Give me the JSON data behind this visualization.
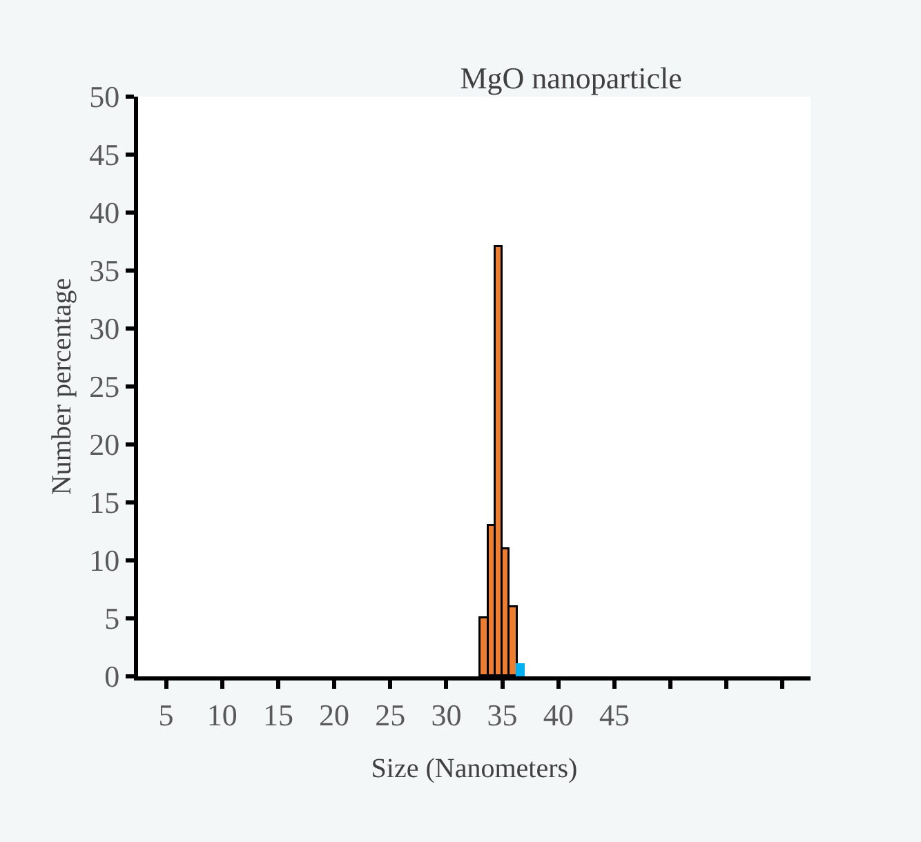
{
  "chart_data": {
    "type": "histogram",
    "title": "MgO nanoparticle",
    "xlabel": "Size (Nanometers)",
    "ylabel": "Number percentage",
    "bins": [
      33.1,
      33.75,
      34.4,
      35.05,
      35.7,
      36.35,
      37.0
    ],
    "values": [
      5,
      13,
      37,
      11,
      6,
      1
    ],
    "colors": [
      "#ed7d31",
      "#ed7d31",
      "#ed7d31",
      "#ed7d31",
      "#ed7d31",
      "#00b0f0"
    ],
    "xlim": [
      2.5,
      62.5
    ],
    "xticks": [
      5,
      10,
      15,
      20,
      25,
      30,
      35,
      40,
      45,
      {
        "value": 50,
        "label": null
      },
      {
        "value": 55,
        "label": null
      },
      {
        "value": 60,
        "label": null
      }
    ],
    "ylim": [
      0,
      50
    ],
    "yticks": [
      0,
      5,
      10,
      15,
      20,
      25,
      30,
      35,
      40,
      45,
      50
    ]
  }
}
